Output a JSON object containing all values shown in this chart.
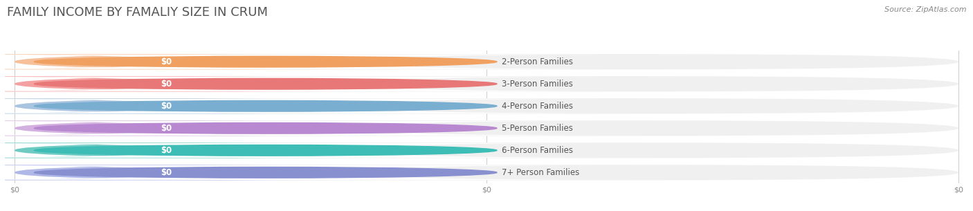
{
  "title": "FAMILY INCOME BY FAMALIY SIZE IN CRUM",
  "source": "Source: ZipAtlas.com",
  "categories": [
    "2-Person Families",
    "3-Person Families",
    "4-Person Families",
    "5-Person Families",
    "6-Person Families",
    "7+ Person Families"
  ],
  "values": [
    0,
    0,
    0,
    0,
    0,
    0
  ],
  "bar_colors": [
    "#f5c09a",
    "#f5a0a0",
    "#a8c4e0",
    "#d4b0e0",
    "#6ecbc4",
    "#b0b8e8"
  ],
  "dot_colors": [
    "#f0a060",
    "#e87878",
    "#7aaed0",
    "#b888d0",
    "#3dbdb5",
    "#8890d0"
  ],
  "value_labels": [
    "$0",
    "$0",
    "$0",
    "$0",
    "$0",
    "$0"
  ],
  "x_tick_labels": [
    "$0",
    "$0",
    "$0"
  ],
  "x_tick_positions": [
    0.0,
    0.5,
    1.0
  ],
  "background_color": "#ffffff",
  "bar_bg_color": "#f0f0f0",
  "title_fontsize": 13,
  "label_fontsize": 8.5,
  "source_fontsize": 8,
  "xlim": [
    0,
    1.0
  ]
}
